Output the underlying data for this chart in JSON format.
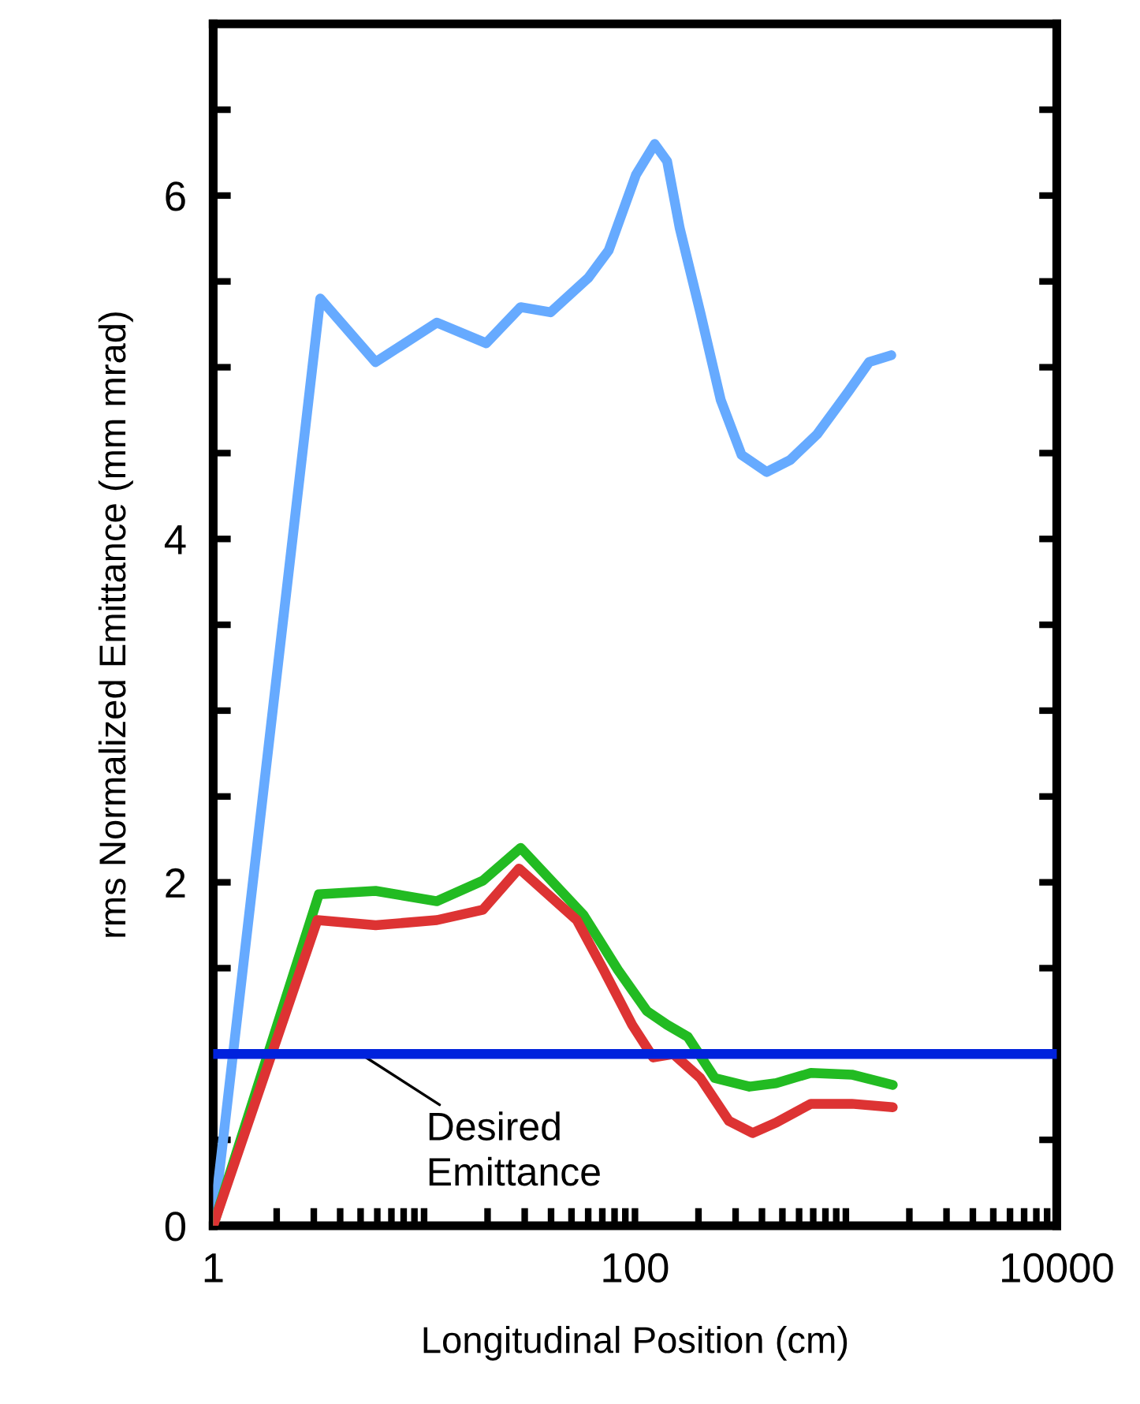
{
  "chart_data": {
    "type": "line",
    "xlabel": "Longitudinal Position (cm)",
    "ylabel": "rms Normalized Emittance (mm mrad)",
    "log": "x",
    "xlim": [
      1,
      10000
    ],
    "xticks": [
      1,
      {
        "value": 2,
        "label": null
      },
      {
        "value": 3,
        "label": null
      },
      {
        "value": 4,
        "label": null
      },
      {
        "value": 5,
        "label": null
      },
      {
        "value": 6,
        "label": null
      },
      {
        "value": 7,
        "label": null
      },
      {
        "value": 8,
        "label": null
      },
      {
        "value": 9,
        "label": null
      },
      {
        "value": 10,
        "label": null
      },
      {
        "value": 20,
        "label": null
      },
      {
        "value": 30,
        "label": null
      },
      {
        "value": 40,
        "label": null
      },
      {
        "value": 50,
        "label": null
      },
      {
        "value": 60,
        "label": null
      },
      {
        "value": 70,
        "label": null
      },
      {
        "value": 80,
        "label": null
      },
      {
        "value": 90,
        "label": null
      },
      100,
      {
        "value": 200,
        "label": null
      },
      {
        "value": 300,
        "label": null
      },
      {
        "value": 400,
        "label": null
      },
      {
        "value": 500,
        "label": null
      },
      {
        "value": 600,
        "label": null
      },
      {
        "value": 700,
        "label": null
      },
      {
        "value": 800,
        "label": null
      },
      {
        "value": 900,
        "label": null
      },
      {
        "value": 1000,
        "label": null
      },
      {
        "value": 2000,
        "label": null
      },
      {
        "value": 3000,
        "label": null
      },
      {
        "value": 4000,
        "label": null
      },
      {
        "value": 5000,
        "label": null
      },
      {
        "value": 6000,
        "label": null
      },
      {
        "value": 7000,
        "label": null
      },
      {
        "value": 8000,
        "label": null
      },
      {
        "value": 9000,
        "label": null
      },
      10000
    ],
    "ylim": [
      0,
      7
    ],
    "yticks": [
      0,
      {
        "value": 0.5,
        "label": null
      },
      {
        "value": 1,
        "label": null
      },
      {
        "value": 1.5,
        "label": null
      },
      2,
      {
        "value": 2.5,
        "label": null
      },
      {
        "value": 3,
        "label": null
      },
      {
        "value": 3.5,
        "label": null
      },
      4,
      {
        "value": 4.5,
        "label": null
      },
      {
        "value": 5,
        "label": null
      },
      {
        "value": 5.5,
        "label": null
      },
      6,
      {
        "value": 6.5,
        "label": null
      }
    ],
    "grid": false,
    "marker": "none",
    "line_style": "solid",
    "series": [
      {
        "color": "#66aaff",
        "x": [
          1,
          3.22,
          5.89,
          11.5,
          19.7,
          28.7,
          39.8,
          60,
          75,
          101,
          124,
          142,
          163,
          204,
          255,
          320,
          421,
          545,
          731,
          1031,
          1289,
          1641
        ],
        "values": [
          0,
          5.4,
          5.03,
          5.26,
          5.14,
          5.35,
          5.32,
          5.52,
          5.68,
          6.12,
          6.3,
          6.2,
          5.81,
          5.32,
          4.81,
          4.49,
          4.39,
          4.46,
          4.61,
          4.86,
          5.03,
          5.07
        ]
      },
      {
        "color": "#22bb22",
        "x": [
          1,
          3.17,
          5.89,
          11.5,
          19.0,
          28.7,
          57,
          83,
          114,
          142,
          178,
          239,
          349,
          467,
          682,
          1067,
          1668
        ],
        "values": [
          0,
          1.93,
          1.95,
          1.89,
          2.01,
          2.2,
          1.81,
          1.49,
          1.25,
          1.17,
          1.1,
          0.86,
          0.81,
          0.83,
          0.89,
          0.88,
          0.82
        ]
      },
      {
        "color": "#dd3333",
        "x": [
          1,
          3.12,
          5.89,
          11.5,
          19.0,
          28.2,
          53,
          71,
          97,
          122,
          152,
          204,
          279,
          361,
          467,
          682,
          1067,
          1668
        ],
        "values": [
          0,
          1.78,
          1.75,
          1.78,
          1.84,
          2.08,
          1.78,
          1.49,
          1.17,
          0.98,
          1.0,
          0.86,
          0.61,
          0.54,
          0.6,
          0.71,
          0.71,
          0.69
        ]
      }
    ],
    "ref_lines": [
      {
        "axis": "y",
        "value": 1.0,
        "color": "#0022dd",
        "line_style": "solid"
      }
    ],
    "annotations": [
      {
        "text": "Desired\nEmittance",
        "x": 5.0,
        "y": 1.0
      }
    ]
  }
}
